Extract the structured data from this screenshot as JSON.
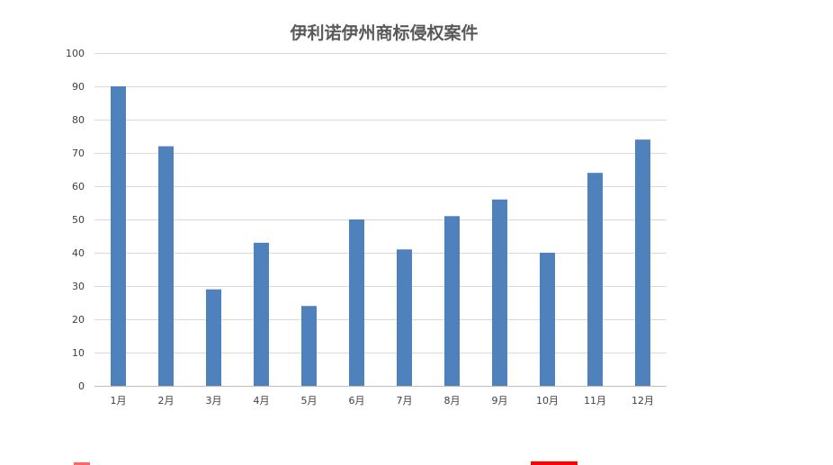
{
  "chart_data": {
    "type": "bar",
    "title": "伊利诺伊州商标侵权案件",
    "xlabel": "",
    "ylabel": "",
    "categories": [
      "1月",
      "2月",
      "3月",
      "4月",
      "5月",
      "6月",
      "7月",
      "8月",
      "9月",
      "10月",
      "11月",
      "12月"
    ],
    "values": [
      90,
      72,
      29,
      43,
      24,
      50,
      41,
      51,
      56,
      40,
      64,
      74
    ],
    "ylim": [
      0,
      100
    ],
    "yticks": [
      0,
      10,
      20,
      30,
      40,
      50,
      60,
      70,
      80,
      90,
      100
    ],
    "grid": true,
    "legend": "none",
    "bar_color": "#4f81bd"
  }
}
